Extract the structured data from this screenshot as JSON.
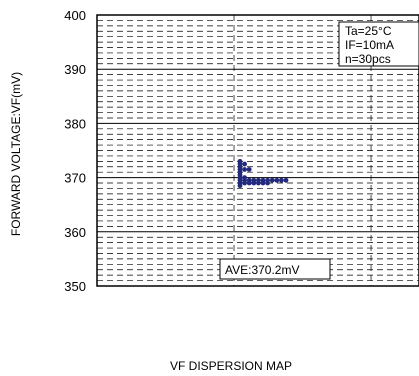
{
  "chart_data": {
    "type": "scatter",
    "title": "",
    "xlabel": "VF DISPERSION MAP",
    "ylabel": "FORWARD VOLTAGE:VF(mV)",
    "ylim": [
      350,
      400
    ],
    "y_ticks": [
      "400",
      "390",
      "380",
      "370",
      "360",
      "350"
    ],
    "grid": true,
    "conditions": [
      "Ta=25°C",
      "IF=10mA",
      "n=30pcs"
    ],
    "conditions_position": "top-right",
    "average_label": "AVE:370.2mV",
    "average_value": 370.2,
    "unit": "mV",
    "histogram_bins": [
      {
        "vf": 373.0,
        "count": 1
      },
      {
        "vf": 372.5,
        "count": 2
      },
      {
        "vf": 372.0,
        "count": 1
      },
      {
        "vf": 371.5,
        "count": 3
      },
      {
        "vf": 371.0,
        "count": 1
      },
      {
        "vf": 370.5,
        "count": 1
      },
      {
        "vf": 370.0,
        "count": 2
      },
      {
        "vf": 369.5,
        "count": 11
      },
      {
        "vf": 369.0,
        "count": 7
      },
      {
        "vf": 368.5,
        "count": 1
      }
    ],
    "marker_color": "#232a7e",
    "grid_color": "#000000"
  }
}
